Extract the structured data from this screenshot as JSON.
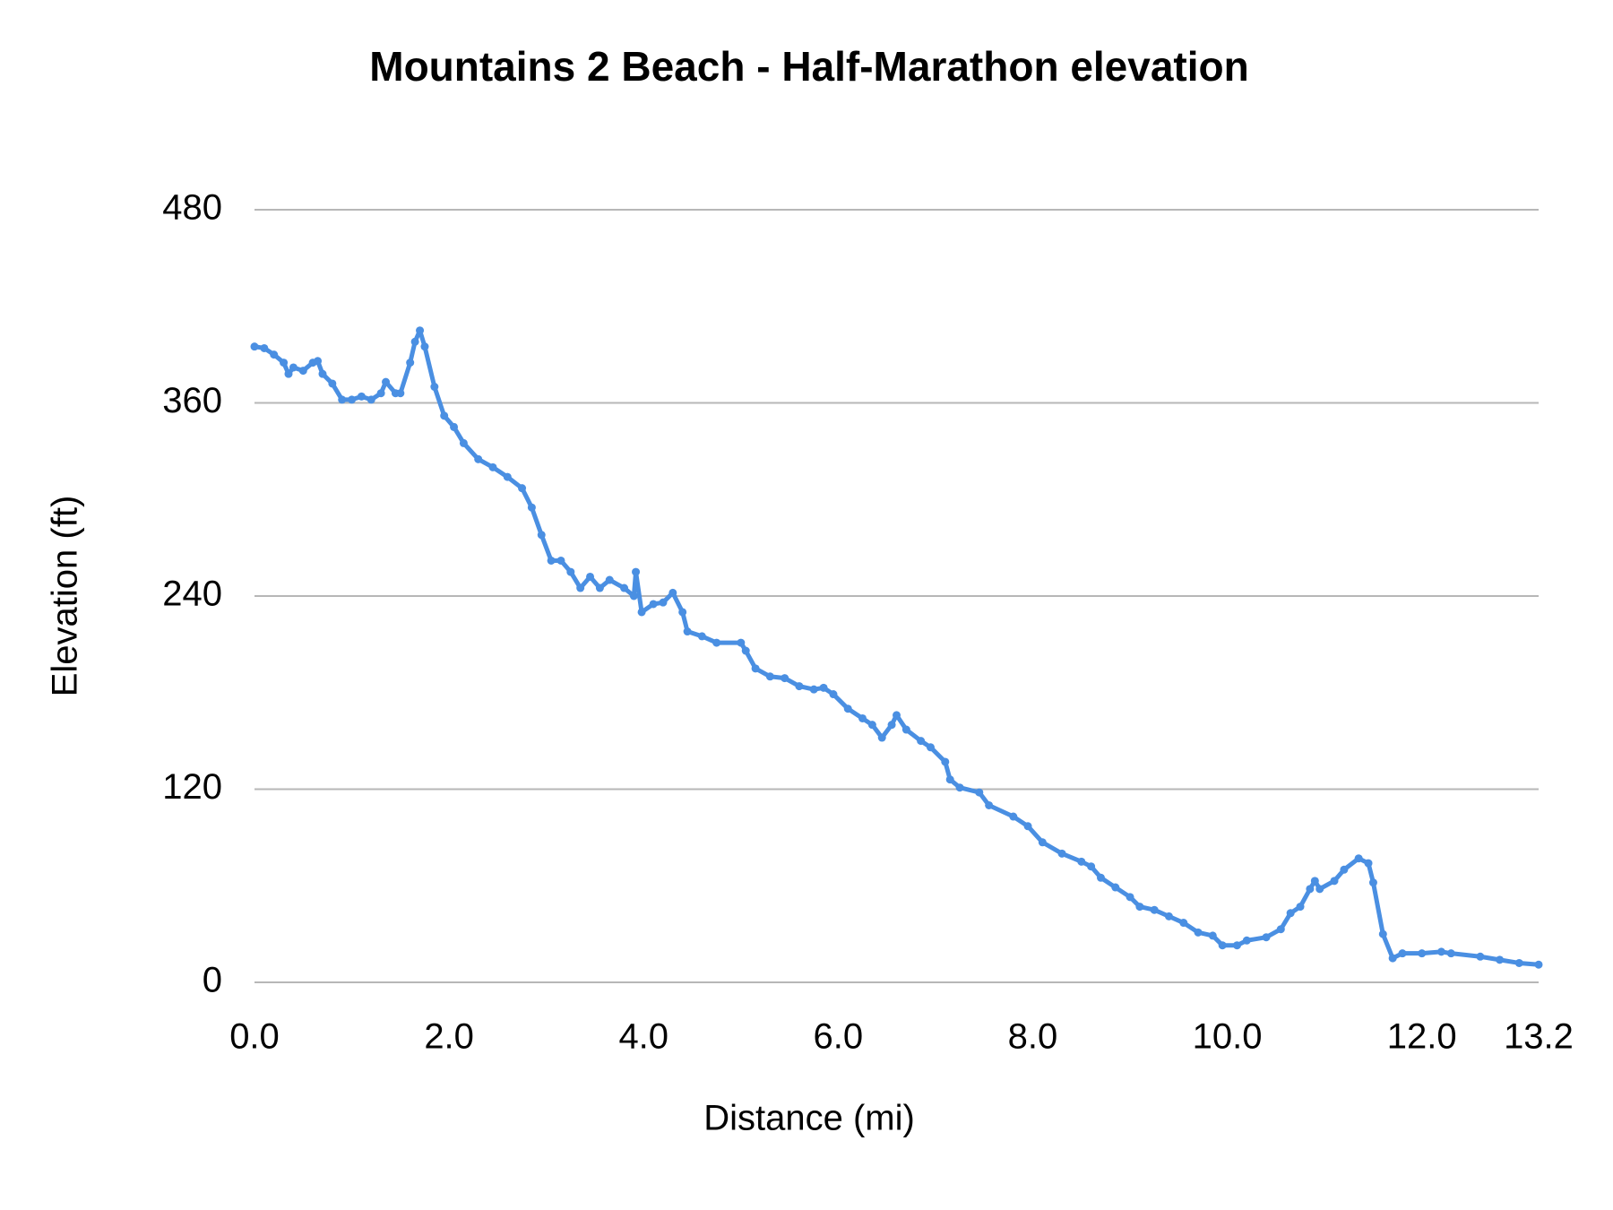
{
  "chart_data": {
    "type": "line",
    "title": "Mountains 2 Beach - Half-Marathon elevation",
    "x_label": "Distance (mi)",
    "y_label": "Elevation (ft)",
    "x": [
      0.0,
      0.1,
      0.2,
      0.3,
      0.35,
      0.4,
      0.5,
      0.6,
      0.65,
      0.7,
      0.8,
      0.9,
      1.0,
      1.1,
      1.2,
      1.3,
      1.35,
      1.45,
      1.5,
      1.6,
      1.65,
      1.7,
      1.75,
      1.85,
      1.95,
      2.05,
      2.15,
      2.3,
      2.45,
      2.6,
      2.75,
      2.85,
      2.95,
      3.05,
      3.15,
      3.25,
      3.35,
      3.45,
      3.55,
      3.65,
      3.8,
      3.9,
      3.92,
      3.98,
      4.1,
      4.2,
      4.3,
      4.4,
      4.45,
      4.6,
      4.75,
      5.0,
      5.05,
      5.15,
      5.3,
      5.45,
      5.6,
      5.75,
      5.85,
      5.95,
      6.1,
      6.25,
      6.35,
      6.45,
      6.55,
      6.6,
      6.7,
      6.85,
      6.95,
      7.1,
      7.15,
      7.25,
      7.45,
      7.55,
      7.8,
      7.95,
      8.1,
      8.3,
      8.5,
      8.6,
      8.7,
      8.85,
      9.0,
      9.1,
      9.25,
      9.4,
      9.55,
      9.7,
      9.85,
      9.95,
      10.1,
      10.2,
      10.4,
      10.55,
      10.65,
      10.75,
      10.85,
      10.9,
      10.95,
      11.1,
      11.2,
      11.35,
      11.45,
      11.5,
      11.6,
      11.7,
      11.8,
      12.0,
      12.2,
      12.3,
      12.6,
      12.8,
      13.0,
      13.2
    ],
    "series": [
      {
        "name": "Elevation (ft)",
        "color": "#4a8fe2",
        "values": [
          395,
          394,
          390,
          385,
          378,
          382,
          380,
          385,
          386,
          378,
          372,
          362,
          362,
          364,
          362,
          366,
          373,
          366,
          366,
          385,
          398,
          405,
          395,
          370,
          352,
          345,
          335,
          325,
          320,
          314,
          307,
          295,
          278,
          262,
          262,
          255,
          245,
          252,
          245,
          250,
          245,
          240,
          255,
          230,
          235,
          236,
          242,
          230,
          218,
          215,
          211,
          211,
          206,
          195,
          190,
          189,
          184,
          182,
          183,
          179,
          170,
          164,
          160,
          152,
          160,
          166,
          157,
          150,
          146,
          137,
          126,
          121,
          118,
          110,
          103,
          97,
          87,
          80,
          75,
          72,
          65,
          59,
          53,
          47,
          45,
          41,
          37,
          31,
          29,
          23,
          23,
          26,
          28,
          33,
          43,
          47,
          58,
          63,
          58,
          63,
          70,
          77,
          74,
          62,
          30,
          15,
          18,
          18,
          19,
          18,
          16,
          14,
          12,
          11
        ]
      }
    ],
    "xlim": [
      0,
      13.2
    ],
    "xticks": [
      {
        "value": 0,
        "label": "0.0"
      },
      {
        "value": 2,
        "label": "2.0"
      },
      {
        "value": 4,
        "label": "4.0"
      },
      {
        "value": 6,
        "label": "6.0"
      },
      {
        "value": 8,
        "label": "8.0"
      },
      {
        "value": 10,
        "label": "10.0"
      },
      {
        "value": 12,
        "label": "12.0"
      },
      13.2
    ],
    "ylim": [
      0,
      480
    ],
    "yticks": [
      0,
      120,
      240,
      360,
      480
    ],
    "grid": true
  }
}
